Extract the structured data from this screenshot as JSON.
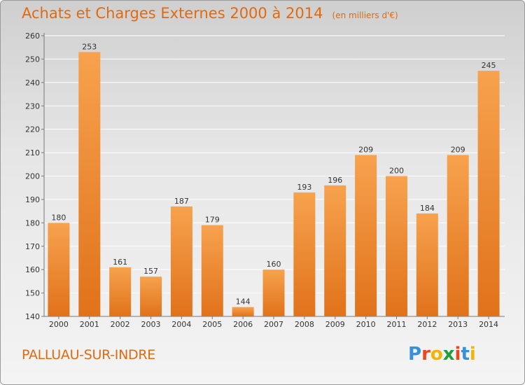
{
  "header": {
    "title": "Achats et Charges Externes 2000 à 2014",
    "subtitle": "(en milliers d'€)"
  },
  "footer": {
    "location": "PALLUAU-SUR-INDRE",
    "logo_letters": [
      "P",
      "r",
      "o",
      "x",
      "i",
      "t",
      "i"
    ],
    "logo_colors": [
      "#3a8fd8",
      "#e8481c",
      "#f2b400",
      "#1f9e3a",
      "#e8481c",
      "#3a8fd8",
      "#f2b400"
    ]
  },
  "chart_data": {
    "type": "bar",
    "categories": [
      "2000",
      "2001",
      "2002",
      "2003",
      "2004",
      "2005",
      "2006",
      "2007",
      "2008",
      "2009",
      "2010",
      "2011",
      "2012",
      "2013",
      "2014"
    ],
    "values": [
      180,
      253,
      161,
      157,
      187,
      179,
      144,
      160,
      193,
      196,
      209,
      200,
      184,
      209,
      245
    ],
    "title": "Achats et Charges Externes 2000 à 2014",
    "xlabel": "",
    "ylabel": "",
    "ylim": [
      140,
      260
    ],
    "yticks": [
      140,
      150,
      160,
      170,
      180,
      190,
      200,
      210,
      220,
      230,
      240,
      250,
      260
    ],
    "grid": true,
    "bar_color_light": "#f7a24e",
    "bar_color_dark": "#e0721a"
  }
}
